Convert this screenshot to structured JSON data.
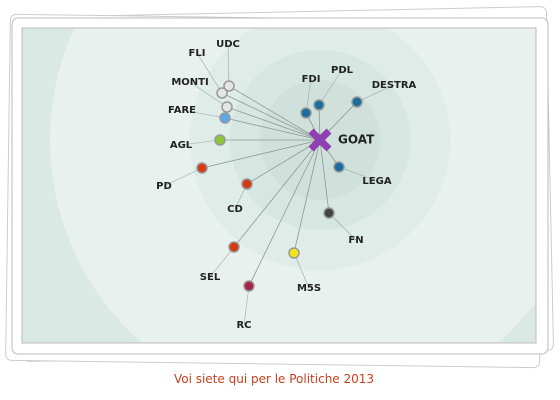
{
  "center": {
    "label": "GOAT",
    "color": "#8e3fb0"
  },
  "nodes": [
    {
      "label": "UDC",
      "color": "#e6e6e6"
    },
    {
      "label": "FLI",
      "color": "#e6e6e6"
    },
    {
      "label": "MONTI",
      "color": "#e6e6e6"
    },
    {
      "label": "FARE",
      "color": "#5aa8e6"
    },
    {
      "label": "AGL",
      "color": "#8cc43c"
    },
    {
      "label": "PD",
      "color": "#d63a14"
    },
    {
      "label": "CD",
      "color": "#d63a14"
    },
    {
      "label": "SEL",
      "color": "#d63a14"
    },
    {
      "label": "RC",
      "color": "#a8234a"
    },
    {
      "label": "M5S",
      "color": "#f2e41a"
    },
    {
      "label": "FN",
      "color": "#444444"
    },
    {
      "label": "LEGA",
      "color": "#1a6e9e"
    },
    {
      "label": "DESTRA",
      "color": "#1a6e9e"
    },
    {
      "label": "PDL",
      "color": "#1a6e9e"
    },
    {
      "label": "FDI",
      "color": "#1a6e9e"
    }
  ],
  "caption": "Voi siete qui per le Politiche 2013"
}
